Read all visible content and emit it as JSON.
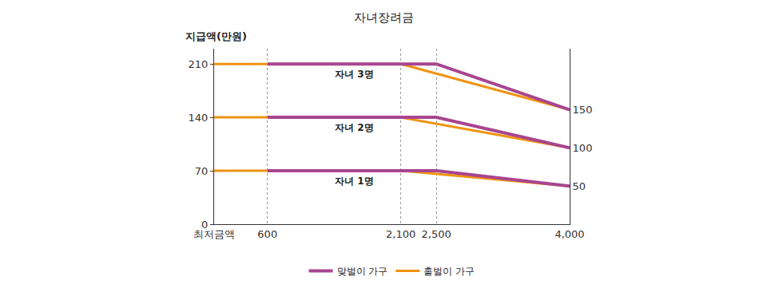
{
  "chart_data": {
    "type": "line",
    "title": "자녀장려금",
    "y_label": "지급액(만원)",
    "xlim": [
      0,
      4000
    ],
    "xticks": [
      {
        "value": 0,
        "label": "최저금액"
      },
      600,
      {
        "value": 2100,
        "label": "2,100"
      },
      {
        "value": 2500,
        "label": "2,500"
      },
      {
        "value": 4000,
        "label": "4,000"
      }
    ],
    "ylim": [
      0,
      230
    ],
    "yticks": [
      0,
      70,
      140,
      210
    ],
    "y2lim": [
      0,
      230
    ],
    "y2ticks": [
      50,
      100,
      150
    ],
    "grid": true,
    "legend": "bottom",
    "series": [
      {
        "name": "맞벌이 가구",
        "group": "자녀 3명",
        "color": "#a8458f",
        "axis": "y2",
        "x": [
          600,
          2500,
          4000
        ],
        "values": [
          210,
          210,
          150
        ]
      },
      {
        "name": "맞벌이 가구",
        "group": "자녀 2명",
        "color": "#a8458f",
        "axis": "y2",
        "x": [
          600,
          2500,
          4000
        ],
        "values": [
          140,
          140,
          100
        ]
      },
      {
        "name": "맞벌이 가구",
        "group": "자녀 1명",
        "color": "#a8458f",
        "axis": "y2",
        "x": [
          600,
          2500,
          4000
        ],
        "values": [
          70,
          70,
          50
        ]
      },
      {
        "name": "홑벌이 가구",
        "group": "자녀 3명",
        "color": "#f0930f",
        "x": [
          0,
          2100,
          4000
        ],
        "values": [
          210,
          210,
          150
        ]
      },
      {
        "name": "홑벌이 가구",
        "group": "자녀 2명",
        "color": "#f0930f",
        "x": [
          0,
          2100,
          4000
        ],
        "values": [
          140,
          140,
          100
        ]
      },
      {
        "name": "홑벌이 가구",
        "group": "자녀 1명",
        "color": "#f0930f",
        "x": [
          0,
          2100,
          4000
        ],
        "values": [
          70,
          70,
          50
        ]
      }
    ]
  }
}
